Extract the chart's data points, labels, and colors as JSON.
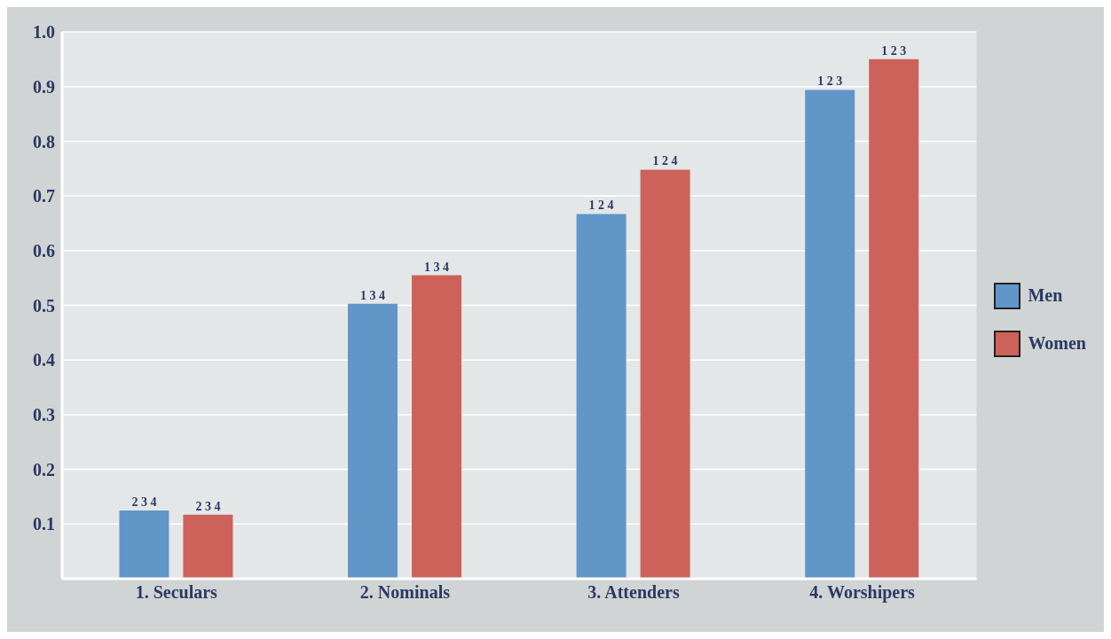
{
  "chart_data": {
    "type": "bar",
    "categories": [
      "1. Seculars",
      "2. Nominals",
      "3. Attenders",
      "4. Worshipers"
    ],
    "series": [
      {
        "name": "Men",
        "color": "#6196c9",
        "values": [
          0.125,
          0.503,
          0.667,
          0.894
        ]
      },
      {
        "name": "Women",
        "color": "#cd625b",
        "values": [
          0.117,
          0.555,
          0.748,
          0.95
        ]
      }
    ],
    "annotations": [
      "2 3 4",
      "2 3 4",
      "1 3 4",
      "1 3 4",
      "1 2 4",
      "1 2 4",
      "1 2 3",
      "1 2 3"
    ],
    "ylim": [
      0,
      1
    ],
    "yticks": [
      0.1,
      0.2,
      0.3,
      0.4,
      0.5,
      0.6,
      0.7,
      0.8,
      0.9,
      {
        "value": 1,
        "label": "1.0"
      }
    ],
    "grid": "y",
    "legend": "right"
  }
}
